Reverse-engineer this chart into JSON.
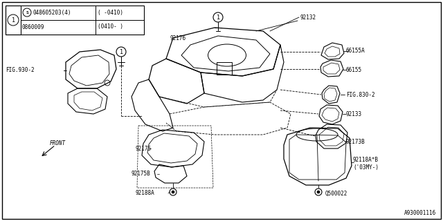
{
  "background_color": "#ffffff",
  "diagram_id": "A930001116",
  "line_color": "#000000",
  "text_color": "#000000",
  "table": {
    "col1_row1": "048605203(4)",
    "col1_row2": "0860009",
    "col2_row1": "( -0410)",
    "col2_row2": "(0410- )"
  },
  "figsize": [
    6.4,
    3.2
  ],
  "dpi": 100
}
